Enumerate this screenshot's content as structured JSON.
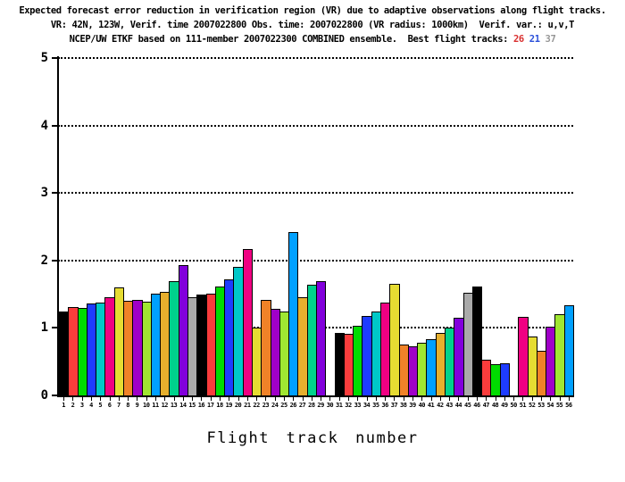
{
  "title": {
    "line1": "Expected forecast error reduction in verification region (VR) due to adaptive observations along flight tracks.",
    "line2": "VR: 42N, 123W, Verif. time 2007022800 Obs. time: 2007022800 (VR radius: 1000km)  Verif. var.: u,v,T",
    "line3_prefix": "NCEP/UW ETKF based on 111-member 2007022300 COMBINED ensemble.  Best flight tracks: ",
    "best_tracks": [
      {
        "label": "26",
        "color": "#d93030"
      },
      {
        "label": "21",
        "color": "#2b50d9"
      },
      {
        "label": "37",
        "color": "#979797"
      }
    ]
  },
  "chart_data": {
    "type": "bar",
    "title": "Expected forecast error reduction in verification region (VR) due to adaptive observations along flight tracks.",
    "xlabel": "Flight track number",
    "ylabel": "",
    "ylim": [
      0,
      5
    ],
    "yticks": [
      0,
      1,
      2,
      3,
      4,
      5
    ],
    "grid": "horizontal dotted lines at each integer y value",
    "legend": "none",
    "categories": [
      1,
      2,
      3,
      4,
      5,
      6,
      7,
      8,
      9,
      10,
      11,
      12,
      13,
      14,
      15,
      16,
      17,
      18,
      19,
      20,
      21,
      22,
      23,
      24,
      25,
      26,
      27,
      28,
      29,
      30,
      31,
      32,
      33,
      34,
      35,
      36,
      37,
      38,
      39,
      40,
      41,
      42,
      43,
      44,
      45,
      46,
      47,
      48,
      49,
      50,
      51,
      52,
      53,
      54,
      55,
      56
    ],
    "values": [
      1.24,
      1.31,
      1.29,
      1.36,
      1.38,
      1.45,
      1.6,
      1.4,
      1.42,
      1.39,
      1.51,
      1.53,
      1.69,
      1.93,
      1.46,
      1.49,
      1.51,
      1.61,
      1.72,
      1.91,
      2.17,
      1.0,
      1.42,
      1.28,
      1.25,
      2.42,
      1.46,
      1.64,
      1.69,
      0.0,
      0.92,
      0.91,
      1.03,
      1.18,
      1.25,
      1.38,
      1.66,
      0.75,
      0.73,
      0.78,
      0.83,
      0.93,
      1.01,
      1.15,
      1.52,
      1.62,
      0.53,
      0.46,
      0.47,
      0.0,
      1.17,
      0.87,
      0.66,
      1.02,
      1.21,
      1.34
    ],
    "bar_outline_color": "#000000",
    "bar_colors_cycle": [
      "#000000",
      "#fa3c3c",
      "#00dc00",
      "#1e3cff",
      "#00c8c8",
      "#f00082",
      "#e6dc32",
      "#f08228",
      "#a000c8",
      "#a0e632",
      "#00a0ff",
      "#e6af2d",
      "#00d28c",
      "#8200dc",
      "#aaaaaa"
    ],
    "color_rule": "bar color = bar_colors_cycle[(track_number - 1) % 15]",
    "zero_value_tracks": [
      30,
      50
    ],
    "best_flight_tracks": [
      26,
      21,
      37
    ]
  }
}
